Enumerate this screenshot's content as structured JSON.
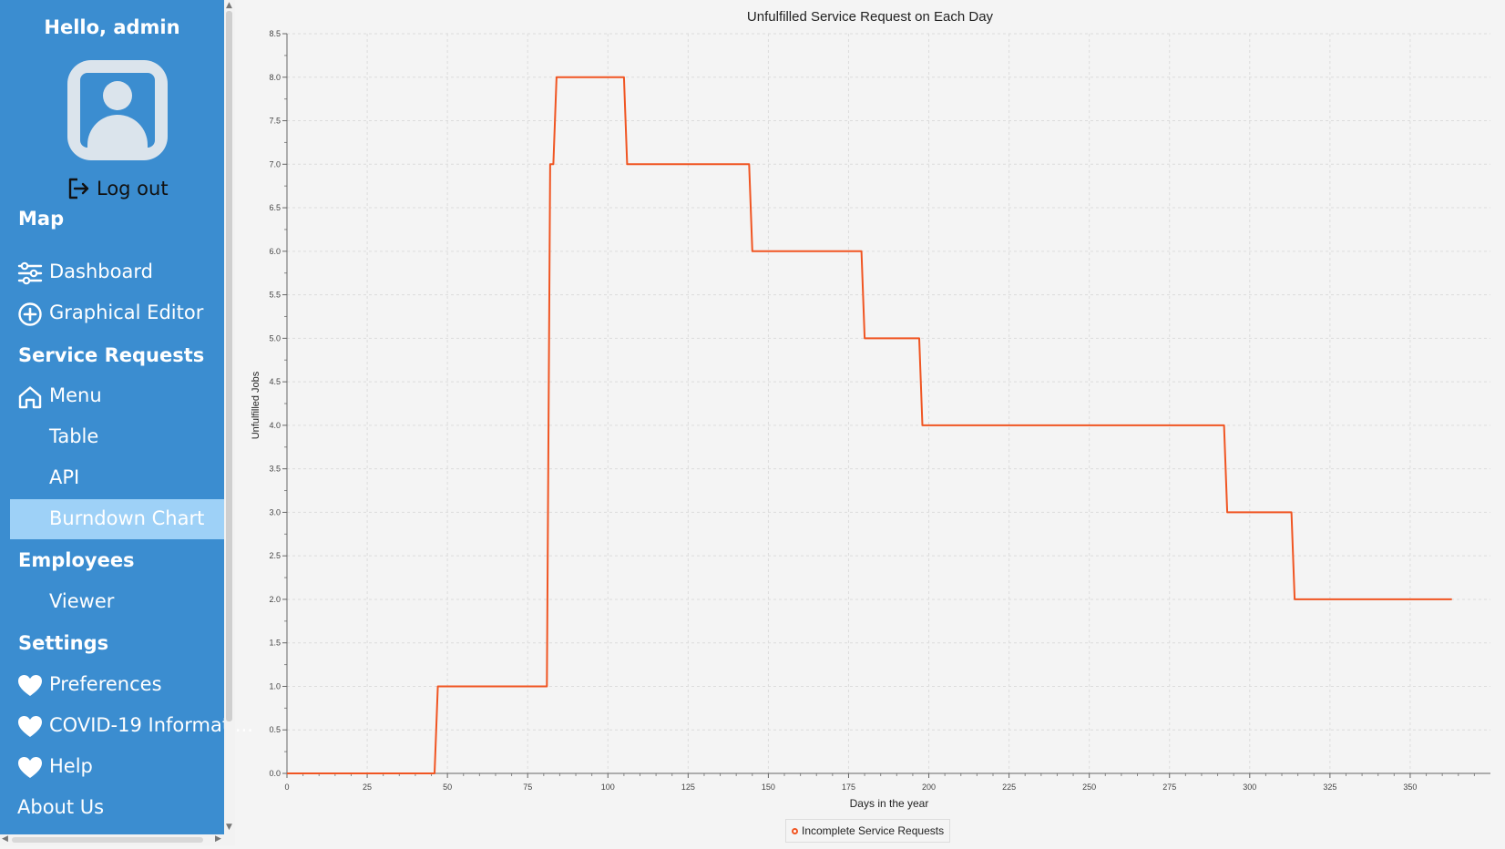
{
  "sidebar": {
    "greeting": "Hello, admin",
    "logout_label": "Log out",
    "sections": {
      "map": "Map",
      "service_requests": "Service Requests",
      "employees": "Employees",
      "settings": "Settings"
    },
    "items": {
      "dashboard": "Dashboard",
      "graphical_editor": "Graphical Editor",
      "menu": "Menu",
      "table": "Table",
      "api": "API",
      "burndown_chart": "Burndown Chart",
      "viewer": "Viewer",
      "preferences": "Preferences",
      "covid_info": "COVID-19 Informati...",
      "help": "Help",
      "about_us": "About Us"
    },
    "active_item": "Burndown Chart",
    "colors": {
      "panel": "#3b8dd0",
      "active": "#9ed1f7"
    }
  },
  "chart_data": {
    "type": "line",
    "title": "Unfulfilled Service Request on Each Day",
    "xlabel": "Days in the year",
    "ylabel": "Unfulfilled Jobs",
    "xlim": [
      0,
      375
    ],
    "ylim": [
      0,
      8.5
    ],
    "xticks": [
      0,
      25,
      50,
      75,
      100,
      125,
      150,
      175,
      200,
      225,
      250,
      275,
      300,
      325,
      350
    ],
    "yticks": [
      "0.0",
      "0.5",
      "1.0",
      "1.5",
      "2.0",
      "2.5",
      "3.0",
      "3.5",
      "4.0",
      "4.5",
      "5.0",
      "5.5",
      "6.0",
      "6.5",
      "7.0",
      "7.5",
      "8.0",
      "8.5"
    ],
    "grid": true,
    "legend_position": "bottom-center",
    "series": [
      {
        "name": "Incomplete Service Requests",
        "color": "#f05522",
        "x": [
          0,
          46,
          47,
          81,
          82,
          83,
          84,
          105,
          106,
          144,
          145,
          179,
          180,
          197,
          198,
          292,
          293,
          313,
          314,
          363
        ],
        "y": [
          0,
          0,
          1,
          1,
          7,
          7,
          8,
          8,
          7,
          7,
          6,
          6,
          5,
          5,
          4,
          4,
          3,
          3,
          2,
          2
        ]
      }
    ]
  }
}
